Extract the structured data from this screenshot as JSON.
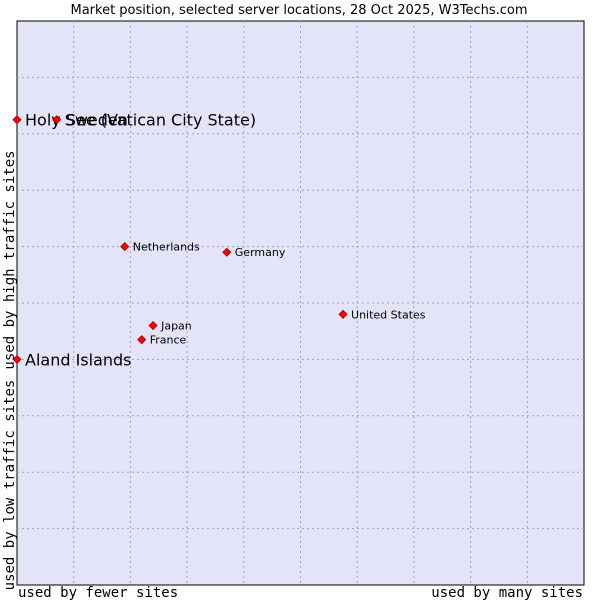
{
  "chart_data": {
    "type": "scatter",
    "title": "Market position, selected server locations, 28 Oct 2025, W3Techs.com",
    "xlabel_left": "used by fewer sites",
    "xlabel_right": "used by many sites",
    "ylabel_top": "used by high traffic sites",
    "ylabel_bottom": "used by low traffic sites",
    "xlim": [
      0,
      100
    ],
    "ylim": [
      0,
      100
    ],
    "grid": true,
    "points": [
      {
        "label": "Holy See (Vatican City State)",
        "x": 0.0,
        "y": 82.5,
        "size": "large"
      },
      {
        "label": "Sweden",
        "x": 7.0,
        "y": 82.5,
        "size": "large"
      },
      {
        "label": "Netherlands",
        "x": 19.0,
        "y": 60.0,
        "size": "small"
      },
      {
        "label": "Germany",
        "x": 37.0,
        "y": 59.0,
        "size": "small"
      },
      {
        "label": "United States",
        "x": 57.5,
        "y": 48.0,
        "size": "small"
      },
      {
        "label": "Japan",
        "x": 24.0,
        "y": 46.0,
        "size": "small"
      },
      {
        "label": "France",
        "x": 22.0,
        "y": 43.5,
        "size": "small"
      },
      {
        "label": "Aland Islands",
        "x": 0.0,
        "y": 40.0,
        "size": "large"
      }
    ]
  },
  "colors": {
    "plot_bg": "#e4e4f8",
    "marker": "#ff0000",
    "marker_edge": "#a00000",
    "grid": "#a0a0c0"
  }
}
